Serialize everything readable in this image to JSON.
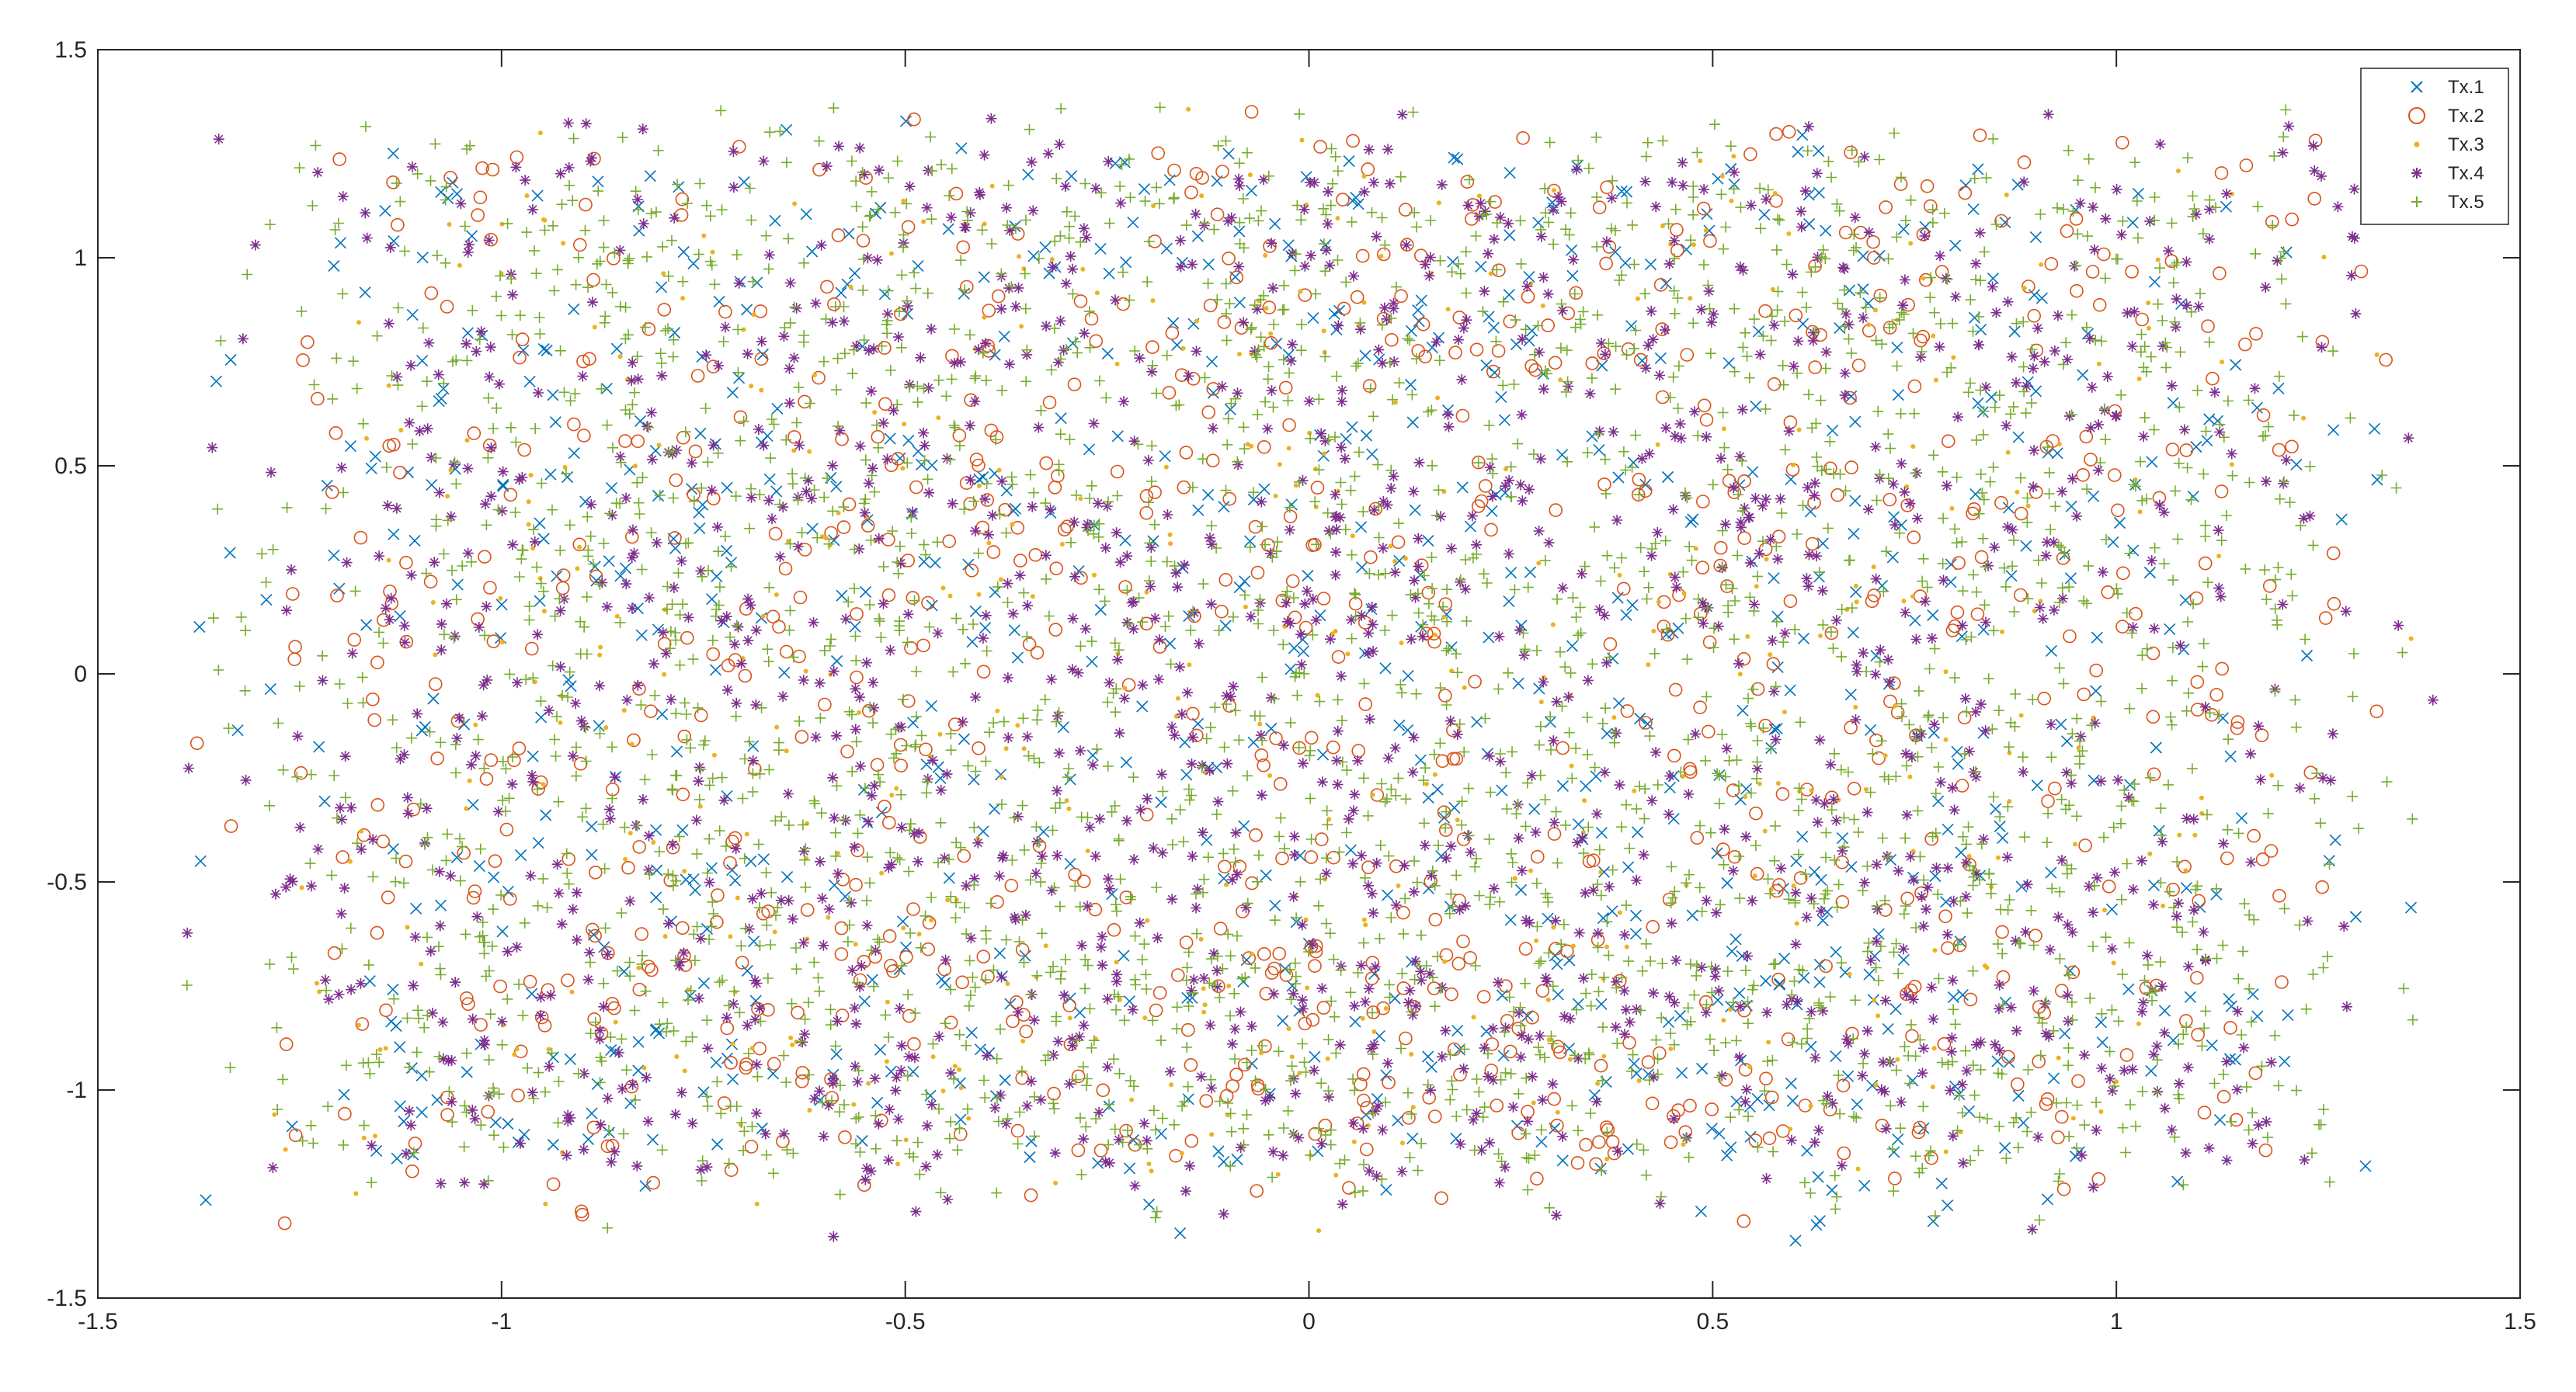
{
  "chart_data": {
    "type": "scatter",
    "title": "",
    "xlabel": "",
    "ylabel": "",
    "xlim": [
      -1.5,
      1.5
    ],
    "ylim": [
      -1.5,
      1.5
    ],
    "x_ticks": [
      "-1.5",
      "-1",
      "-0.5",
      "0",
      "0.5",
      "1",
      "1.5"
    ],
    "y_ticks": [
      "1.5",
      "1",
      "0.5",
      "0",
      "-0.5",
      "-1",
      "-1.5"
    ],
    "grid": false,
    "legend_position": "top-right",
    "constellation": {
      "description_points": "16x8 grid of cluster centers",
      "i_levels": [
        -1.1,
        -0.95,
        -0.8,
        -0.65,
        -0.5,
        -0.35,
        -0.2,
        -0.05,
        0.05,
        0.2,
        0.35,
        0.5,
        0.65,
        0.8,
        0.95,
        1.1
      ],
      "q_levels": [
        -1.05,
        -0.78,
        -0.5,
        -0.2,
        0.15,
        0.45,
        0.8,
        1.1
      ],
      "spread": 0.13,
      "extent": 1.2
    },
    "series": [
      {
        "name": "Tx.1",
        "marker": "x",
        "color": "#0072BD"
      },
      {
        "name": "Tx.2",
        "marker": "o",
        "color": "#D95319"
      },
      {
        "name": "Tx.3",
        "marker": ".",
        "color": "#EDB120"
      },
      {
        "name": "Tx.4",
        "marker": "*",
        "color": "#7E2F8E"
      },
      {
        "name": "Tx.5",
        "marker": "+",
        "color": "#77AC30"
      }
    ]
  }
}
